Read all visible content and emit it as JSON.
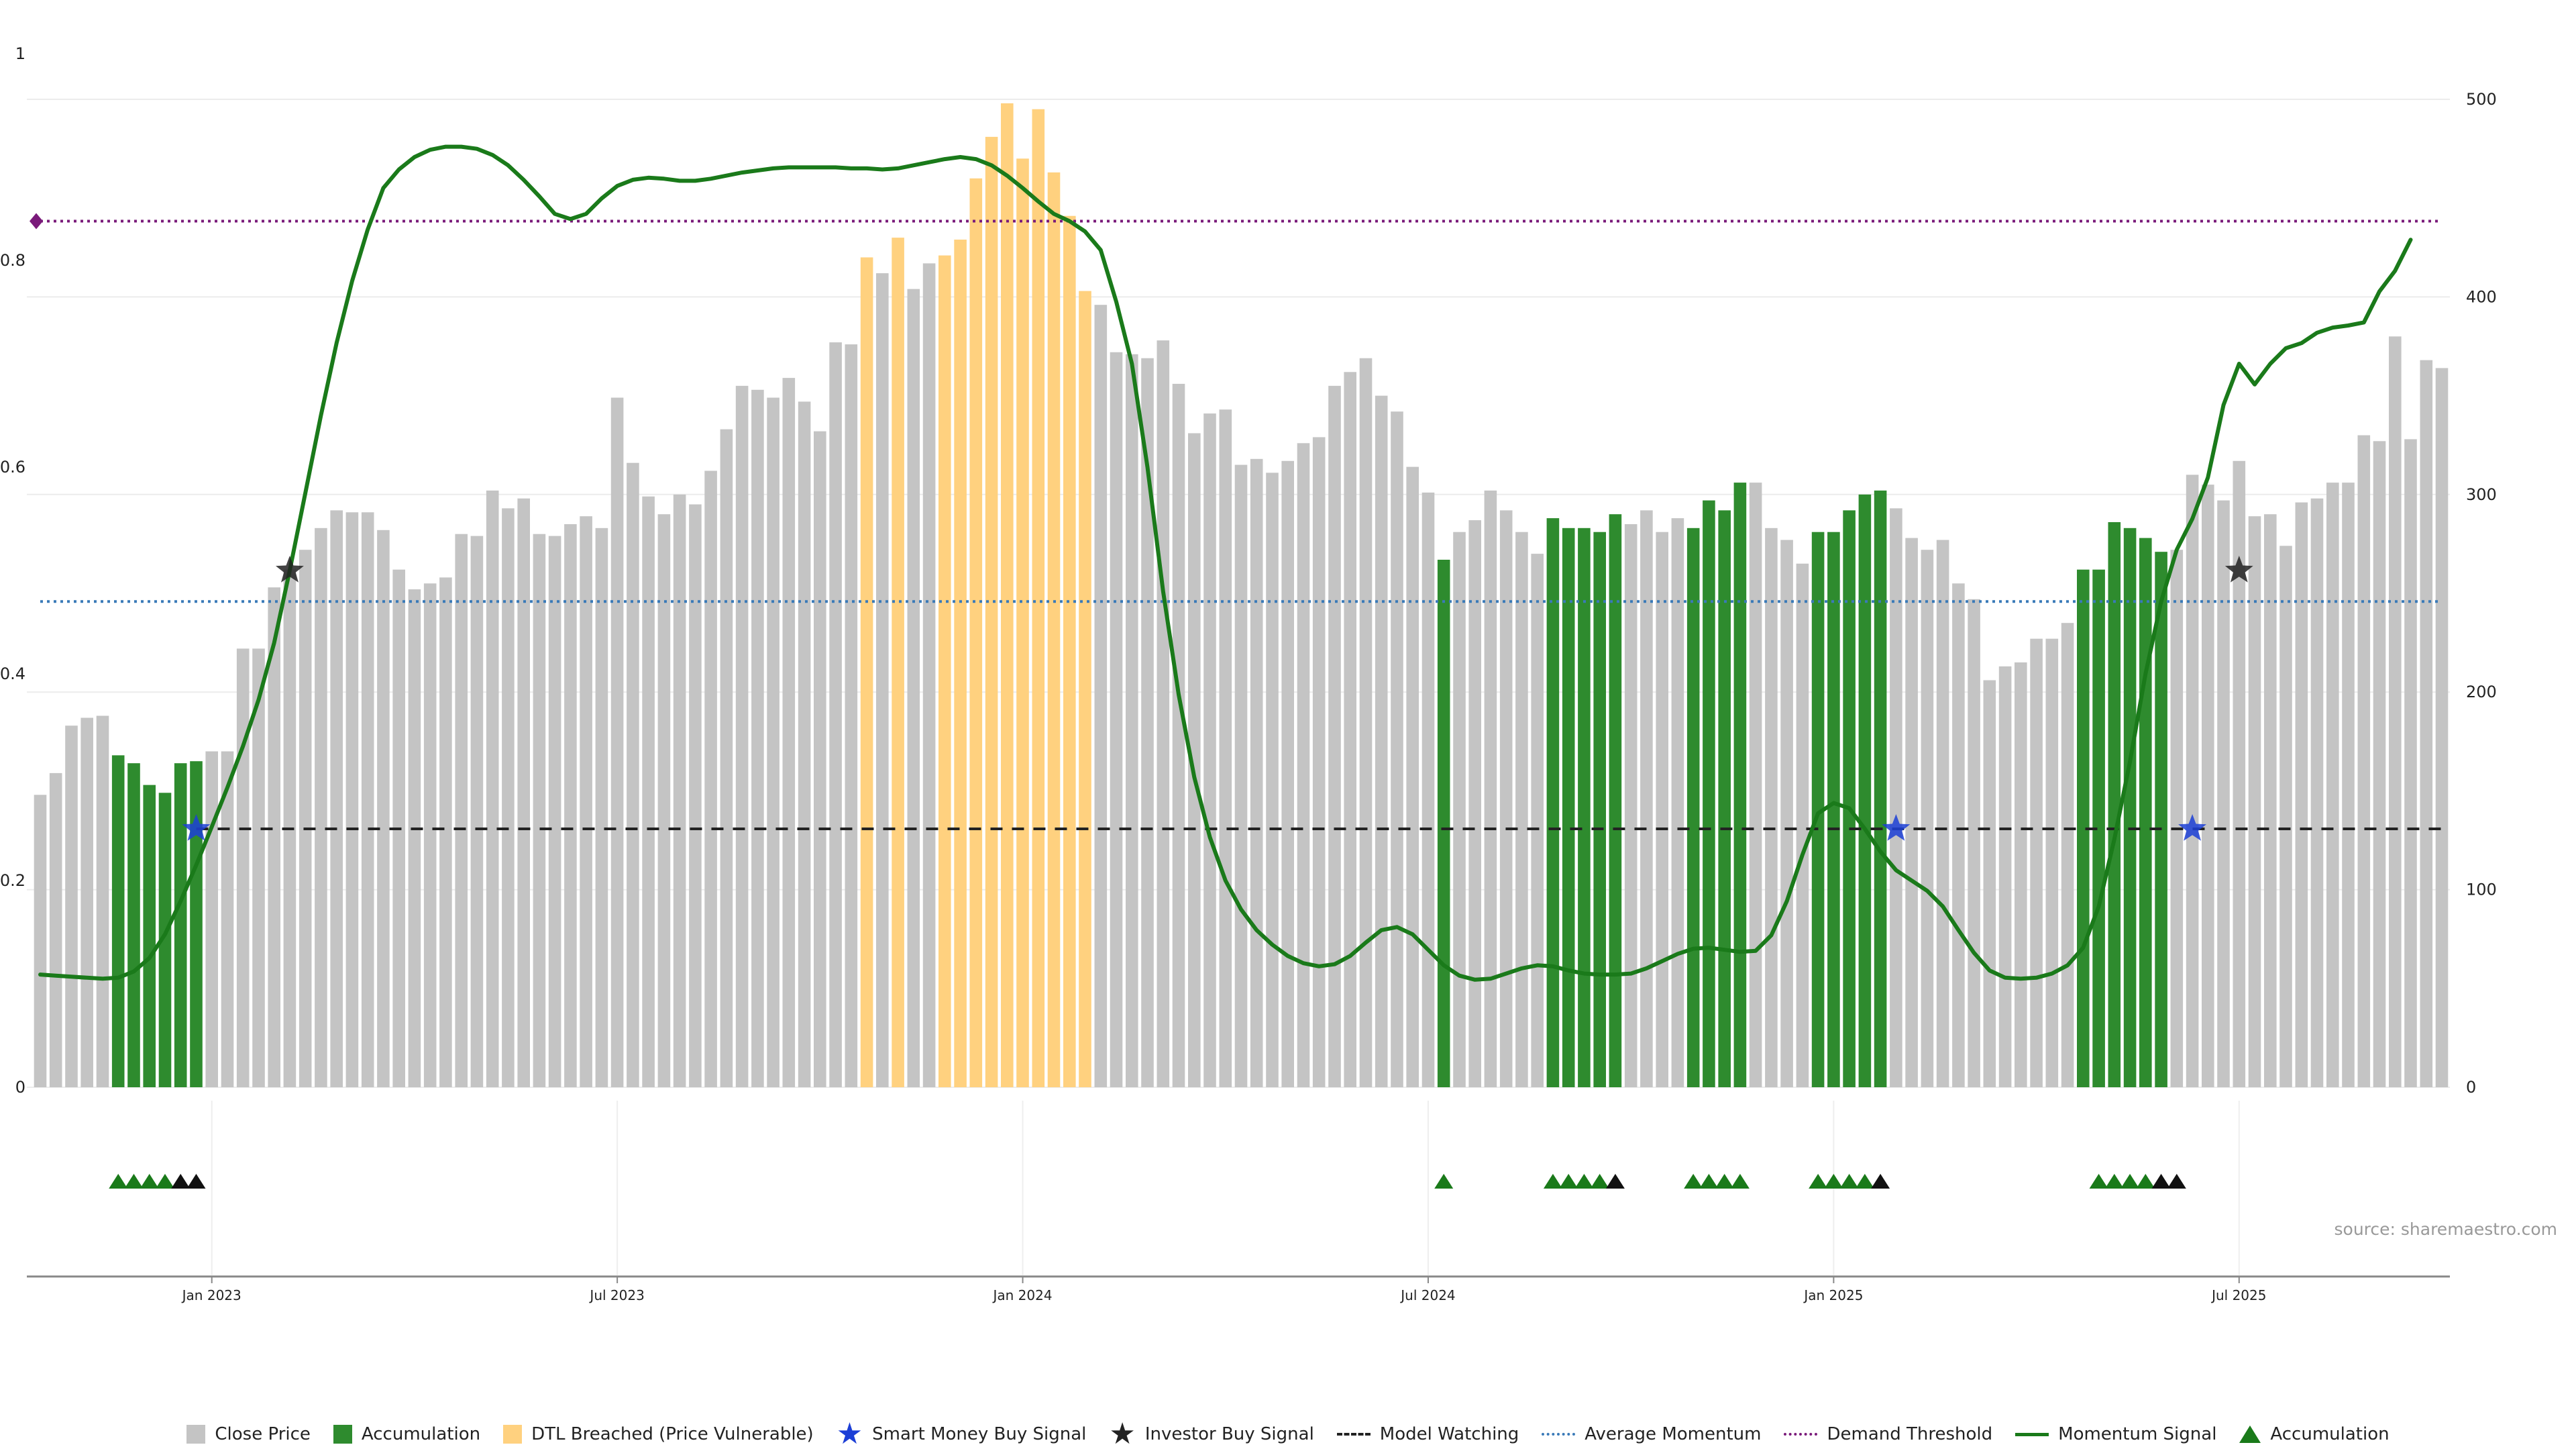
{
  "colors": {
    "close": "#c4c4c4",
    "accumulation": "#2e8b2e",
    "dtl": "#ffd17f",
    "momentum": "#1a7a1a",
    "avg_momentum": "#3a7ab8",
    "demand": "#7a1a7a",
    "watching": "#222222",
    "smart_money": "#1c3fd6",
    "investor": "#222222"
  },
  "source_text": "source: sharemaestro.com",
  "chart_data": {
    "type": "bar",
    "left_axis": {
      "ylim": [
        0,
        1
      ],
      "ticks": [
        "0",
        "0.2",
        "0.4",
        "0.6",
        "0.8",
        "1"
      ]
    },
    "right_axis": {
      "ylim": [
        0,
        500
      ],
      "ticks": [
        "0",
        "100",
        "200",
        "300",
        "400",
        "500"
      ]
    },
    "x_ticks": [
      {
        "label": "Jan 2023",
        "week": 11
      },
      {
        "label": "Jul 2023",
        "week": 37
      },
      {
        "label": "Jan 2024",
        "week": 63
      },
      {
        "label": "Jul 2024",
        "week": 89
      },
      {
        "label": "Jan 2025",
        "week": 115
      },
      {
        "label": "Jul 2025",
        "week": 141
      }
    ],
    "close_price": [
      148,
      159,
      183,
      187,
      188,
      168,
      164,
      153,
      149,
      164,
      165,
      170,
      170,
      222,
      222,
      253,
      262,
      272,
      283,
      292,
      291,
      291,
      282,
      262,
      252,
      255,
      258,
      280,
      279,
      302,
      293,
      298,
      280,
      279,
      285,
      289,
      283,
      349,
      316,
      299,
      290,
      300,
      295,
      312,
      333,
      355,
      353,
      349,
      359,
      347,
      332,
      377,
      376,
      420,
      412,
      430,
      404,
      417,
      421,
      429,
      460,
      481,
      498,
      470,
      495,
      463,
      441,
      403,
      396,
      372,
      371,
      369,
      378,
      356,
      331,
      341,
      343,
      315,
      318,
      311,
      317,
      326,
      329,
      355,
      362,
      369,
      350,
      342,
      314,
      301,
      267,
      281,
      287,
      302,
      292,
      281,
      270,
      288,
      283,
      283,
      281,
      290,
      285,
      292,
      281,
      288,
      283,
      297,
      292,
      306,
      306,
      283,
      277,
      265,
      281,
      281,
      292,
      300,
      302,
      293,
      278,
      272,
      277,
      255,
      247,
      206,
      213,
      215,
      227,
      227,
      235,
      262,
      262,
      286,
      283,
      278,
      271,
      272,
      310,
      305,
      297,
      317,
      289,
      290,
      274,
      296,
      298,
      306,
      306,
      330,
      327,
      380,
      328,
      368,
      364
    ],
    "series_state": [
      "c",
      "c",
      "c",
      "c",
      "c",
      "a",
      "a",
      "a",
      "a",
      "a",
      "a",
      "c",
      "c",
      "c",
      "c",
      "c",
      "c",
      "c",
      "c",
      "c",
      "c",
      "c",
      "c",
      "c",
      "c",
      "c",
      "c",
      "c",
      "c",
      "c",
      "c",
      "c",
      "c",
      "c",
      "c",
      "c",
      "c",
      "c",
      "c",
      "c",
      "c",
      "c",
      "c",
      "c",
      "c",
      "c",
      "c",
      "c",
      "c",
      "c",
      "c",
      "c",
      "c",
      "d",
      "c",
      "d",
      "c",
      "c",
      "d",
      "d",
      "d",
      "d",
      "d",
      "d",
      "d",
      "d",
      "d",
      "d",
      "c",
      "c",
      "c",
      "c",
      "c",
      "c",
      "c",
      "c",
      "c",
      "c",
      "c",
      "c",
      "c",
      "c",
      "c",
      "c",
      "c",
      "c",
      "c",
      "c",
      "c",
      "c",
      "a",
      "c",
      "c",
      "c",
      "c",
      "c",
      "c",
      "a",
      "a",
      "a",
      "a",
      "a",
      "c",
      "c",
      "c",
      "c",
      "a",
      "a",
      "a",
      "a",
      "c",
      "c",
      "c",
      "c",
      "a",
      "a",
      "a",
      "a",
      "a",
      "c",
      "c",
      "c",
      "c",
      "c",
      "c",
      "c",
      "c",
      "c",
      "c",
      "c",
      "c",
      "a",
      "a",
      "a",
      "a",
      "a",
      "a",
      "c",
      "c",
      "c",
      "c",
      "c",
      "c",
      "c",
      "c",
      "c",
      "c",
      "c",
      "c",
      "c",
      "c",
      "c",
      "c",
      "c",
      "c"
    ],
    "momentum_signal": [
      0.109,
      0.108,
      0.107,
      0.106,
      0.105,
      0.106,
      0.112,
      0.125,
      0.148,
      0.18,
      0.215,
      0.252,
      0.29,
      0.33,
      0.375,
      0.43,
      0.5,
      0.575,
      0.65,
      0.72,
      0.78,
      0.83,
      0.87,
      0.888,
      0.9,
      0.907,
      0.91,
      0.91,
      0.908,
      0.902,
      0.892,
      0.878,
      0.862,
      0.845,
      0.84,
      0.845,
      0.86,
      0.872,
      0.878,
      0.88,
      0.879,
      0.877,
      0.877,
      0.879,
      0.882,
      0.885,
      0.887,
      0.889,
      0.89,
      0.89,
      0.89,
      0.89,
      0.889,
      0.889,
      0.888,
      0.889,
      0.892,
      0.895,
      0.898,
      0.9,
      0.898,
      0.892,
      0.882,
      0.87,
      0.857,
      0.845,
      0.838,
      0.828,
      0.81,
      0.76,
      0.7,
      0.6,
      0.48,
      0.38,
      0.3,
      0.242,
      0.2,
      0.172,
      0.152,
      0.138,
      0.127,
      0.12,
      0.117,
      0.119,
      0.127,
      0.14,
      0.152,
      0.155,
      0.148,
      0.133,
      0.118,
      0.108,
      0.104,
      0.105,
      0.11,
      0.115,
      0.118,
      0.117,
      0.113,
      0.11,
      0.109,
      0.109,
      0.11,
      0.115,
      0.122,
      0.129,
      0.134,
      0.135,
      0.133,
      0.131,
      0.132,
      0.147,
      0.18,
      0.225,
      0.265,
      0.275,
      0.27,
      0.25,
      0.228,
      0.21,
      0.2,
      0.19,
      0.175,
      0.152,
      0.13,
      0.113,
      0.106,
      0.105,
      0.106,
      0.11,
      0.118,
      0.135,
      0.175,
      0.24,
      0.315,
      0.4,
      0.47,
      0.52,
      0.55,
      0.59,
      0.66,
      0.7,
      0.68,
      0.7,
      0.715,
      0.72,
      0.73,
      0.735,
      0.737,
      0.74,
      0.77,
      0.79,
      0.82
    ],
    "average_momentum": 0.47,
    "demand_threshold": 0.838,
    "model_watching": 0.25,
    "smart_money_signals": [
      {
        "week": 10,
        "value": 0.25
      },
      {
        "week": 119,
        "value": 0.25
      },
      {
        "week": 138,
        "value": 0.25
      }
    ],
    "investor_signals": [
      {
        "week": 16,
        "value": 0.5
      },
      {
        "week": 141,
        "value": 0.5
      }
    ],
    "signal_row": {
      "accumulation": [
        5,
        6,
        7,
        8,
        90,
        97,
        98,
        99,
        100,
        106,
        107,
        108,
        109,
        114,
        115,
        116,
        117,
        132,
        133,
        134,
        135
      ],
      "investor": [
        9,
        10,
        101,
        118,
        136,
        137
      ]
    },
    "legend": [
      {
        "key": "close",
        "label": "Close Price",
        "shape": "square"
      },
      {
        "key": "accumulation",
        "label": "Accumulation",
        "shape": "square"
      },
      {
        "key": "dtl",
        "label": "DTL Breached (Price Vulnerable)",
        "shape": "square"
      },
      {
        "key": "smart_money",
        "label": "Smart Money Buy Signal",
        "shape": "star"
      },
      {
        "key": "investor",
        "label": "Investor Buy Signal",
        "shape": "star"
      },
      {
        "key": "watching",
        "label": "Model Watching",
        "shape": "dashed"
      },
      {
        "key": "avg_momentum",
        "label": "Average Momentum",
        "shape": "dotted"
      },
      {
        "key": "demand",
        "label": "Demand Threshold",
        "shape": "dotted"
      },
      {
        "key": "momentum",
        "label": "Momentum Signal",
        "shape": "line"
      },
      {
        "key": "accumulation_marker",
        "label": "Accumulation",
        "shape": "triangle"
      }
    ]
  }
}
